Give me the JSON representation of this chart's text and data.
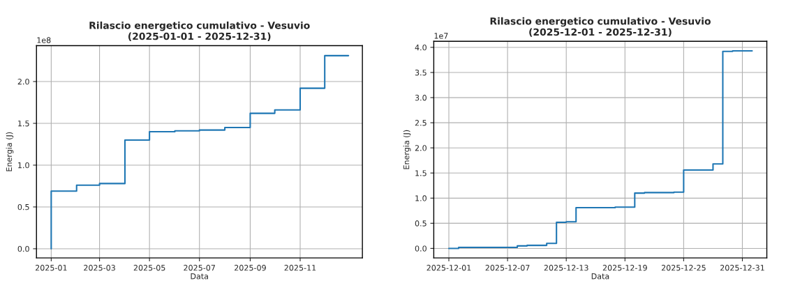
{
  "chart_data": [
    {
      "type": "step",
      "title": "Rilascio energetico cumulativo - Vesuvio\n(2025-01-01 - 2025-12-31)",
      "xlabel": "Data",
      "ylabel": "Energia (J)",
      "annotations": [
        "1e8"
      ],
      "x": [
        "2025-01-01",
        "2025-01-01",
        "2025-02-01",
        "2025-03-01",
        "2025-04-01",
        "2025-05-01",
        "2025-06-01",
        "2025-07-01",
        "2025-08-01",
        "2025-09-01",
        "2025-10-01",
        "2025-11-01",
        "2025-12-01",
        "2025-12-30"
      ],
      "values": [
        0,
        0.69,
        0.76,
        0.78,
        1.3,
        1.4,
        1.41,
        1.42,
        1.45,
        1.62,
        1.66,
        1.92,
        2.31,
        2.31
      ],
      "color": "#1f77b4",
      "grid": true,
      "xlim": [
        "2024-12-14",
        "2026-01-16"
      ],
      "xticks": [
        {
          "value": "2025-01-01",
          "label": "2025-01"
        },
        {
          "value": "2025-03-01",
          "label": "2025-03"
        },
        {
          "value": "2025-05-01",
          "label": "2025-05"
        },
        {
          "value": "2025-07-01",
          "label": "2025-07"
        },
        {
          "value": "2025-09-01",
          "label": "2025-09"
        },
        {
          "value": "2025-11-01",
          "label": "2025-11"
        }
      ],
      "ylim": [
        -0.11,
        2.43
      ],
      "yticks": [
        {
          "value": 0,
          "label": "0.0"
        },
        0.5,
        {
          "value": 1,
          "label": "1.0"
        },
        1.5,
        {
          "value": 2,
          "label": "2.0"
        }
      ]
    },
    {
      "type": "step",
      "title": "Rilascio energetico cumulativo - Vesuvio\n(2025-12-01 - 2025-12-31)",
      "xlabel": "Data",
      "ylabel": "Energia (J)",
      "annotations": [
        "1e7"
      ],
      "x": [
        "2025-12-01",
        "2025-12-02",
        "2025-12-08",
        "2025-12-09",
        "2025-12-11",
        "2025-12-12",
        "2025-12-13",
        "2025-12-14",
        "2025-12-18",
        "2025-12-20",
        "2025-12-21",
        "2025-12-24",
        "2025-12-25",
        "2025-12-28",
        "2025-12-29",
        "2025-12-30",
        "2026-01-01"
      ],
      "values": [
        0,
        0.02,
        0.05,
        0.06,
        0.1,
        0.52,
        0.53,
        0.81,
        0.82,
        1.1,
        1.11,
        1.12,
        1.56,
        1.68,
        3.92,
        3.93,
        3.93
      ],
      "color": "#1f77b4",
      "grid": true,
      "xlim": [
        "2025-11-29T11:00",
        "2026-01-02T12:00"
      ],
      "xticks": [
        {
          "value": "2025-12-01",
          "label": "2025-12-01"
        },
        {
          "value": "2025-12-07",
          "label": "2025-12-07"
        },
        {
          "value": "2025-12-13",
          "label": "2025-12-13"
        },
        {
          "value": "2025-12-19",
          "label": "2025-12-19"
        },
        {
          "value": "2025-12-25",
          "label": "2025-12-25"
        },
        {
          "value": "2025-12-31",
          "label": "2025-12-31"
        }
      ],
      "ylim": [
        -0.19,
        4.12
      ],
      "yticks": [
        {
          "value": 0,
          "label": "0.0"
        },
        0.5,
        {
          "value": 1,
          "label": "1.0"
        },
        1.5,
        {
          "value": 2,
          "label": "2.0"
        },
        2.5,
        {
          "value": 3,
          "label": "3.0"
        },
        3.5,
        {
          "value": 4,
          "label": "4.0"
        }
      ]
    }
  ]
}
